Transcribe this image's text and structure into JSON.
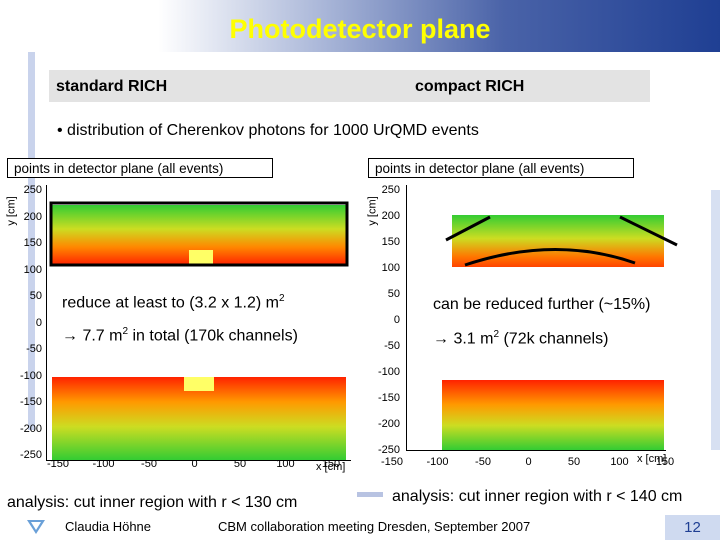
{
  "slide": {
    "title": "Photodetector plane",
    "header_left": "standard RICH",
    "header_right": "compact RICH",
    "bullet": "• distribution of Cherenkov photons for 1000 UrQMD events",
    "left_note1": "reduce at least to (3.2 x 1.2) m",
    "left_note1_sup": "2",
    "left_note2": "→ 7.7 m",
    "left_note2_sup": "2",
    "left_note2_rest": " in total (170k channels)",
    "right_note1": "can be reduced further (~15%)",
    "right_note2": "→ 3.1 m",
    "right_note2_sup": "2",
    "right_note2_rest": " (72k channels)",
    "analysis_left": "analysis: cut inner region with r < 130 cm",
    "analysis_right": "analysis: cut inner region with r < 140 cm",
    "footer_author": "Claudia Höhne",
    "footer_event": "CBM collaboration meeting Dresden, September 2007",
    "page_number": "12"
  },
  "plots": {
    "left": {
      "title": "points in detector plane (all events)",
      "ylabel": "y [cm]",
      "xlabel": "x [cm]",
      "yticks": [
        "250",
        "200",
        "150",
        "100",
        "50",
        "0",
        "-50",
        "-100",
        "-150",
        "-200",
        "-250"
      ],
      "xticks": [
        "-150",
        "-100",
        "-50",
        "0",
        "50",
        "100",
        "150"
      ]
    },
    "right": {
      "title": "points in detector plane (all events)",
      "ylabel": "y [cm]",
      "xlabel": "x [cm]",
      "yticks": [
        "250",
        "200",
        "150",
        "100",
        "50",
        "0",
        "-50",
        "-100",
        "-150",
        "-200",
        "-250"
      ],
      "xticks": [
        "-150",
        "-100",
        "-50",
        "0",
        "50",
        "100",
        "150"
      ]
    }
  },
  "colors": {
    "title": "#ffff00",
    "accent": "#1f3f93",
    "heat_hot": "#ff0000",
    "heat_mid": "#ffcc00",
    "heat_cool": "#33cc33"
  }
}
